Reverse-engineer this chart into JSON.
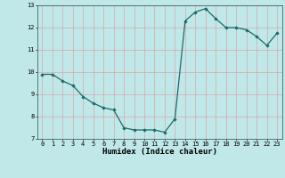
{
  "x": [
    0,
    1,
    2,
    3,
    4,
    5,
    6,
    7,
    8,
    9,
    10,
    11,
    12,
    13,
    14,
    15,
    16,
    17,
    18,
    19,
    20,
    21,
    22,
    23
  ],
  "y": [
    9.9,
    9.9,
    9.6,
    9.4,
    8.9,
    8.6,
    8.4,
    8.3,
    7.5,
    7.4,
    7.4,
    7.4,
    7.3,
    7.9,
    12.3,
    12.7,
    12.85,
    12.4,
    12.0,
    12.0,
    11.9,
    11.6,
    11.2,
    11.75
  ],
  "line_color": "#1a6b6b",
  "marker": "D",
  "marker_size": 1.8,
  "line_width": 0.9,
  "bg_color": "#c0e8e8",
  "grid_color": "#d8a8a8",
  "xlabel": "Humidex (Indice chaleur)",
  "xlabel_fontsize": 6.5,
  "ylim": [
    7,
    13
  ],
  "xlim": [
    -0.5,
    23.5
  ],
  "yticks": [
    7,
    8,
    9,
    10,
    11,
    12,
    13
  ],
  "xticks": [
    0,
    1,
    2,
    3,
    4,
    5,
    6,
    7,
    8,
    9,
    10,
    11,
    12,
    13,
    14,
    15,
    16,
    17,
    18,
    19,
    20,
    21,
    22,
    23
  ],
  "tick_fontsize": 5.0
}
